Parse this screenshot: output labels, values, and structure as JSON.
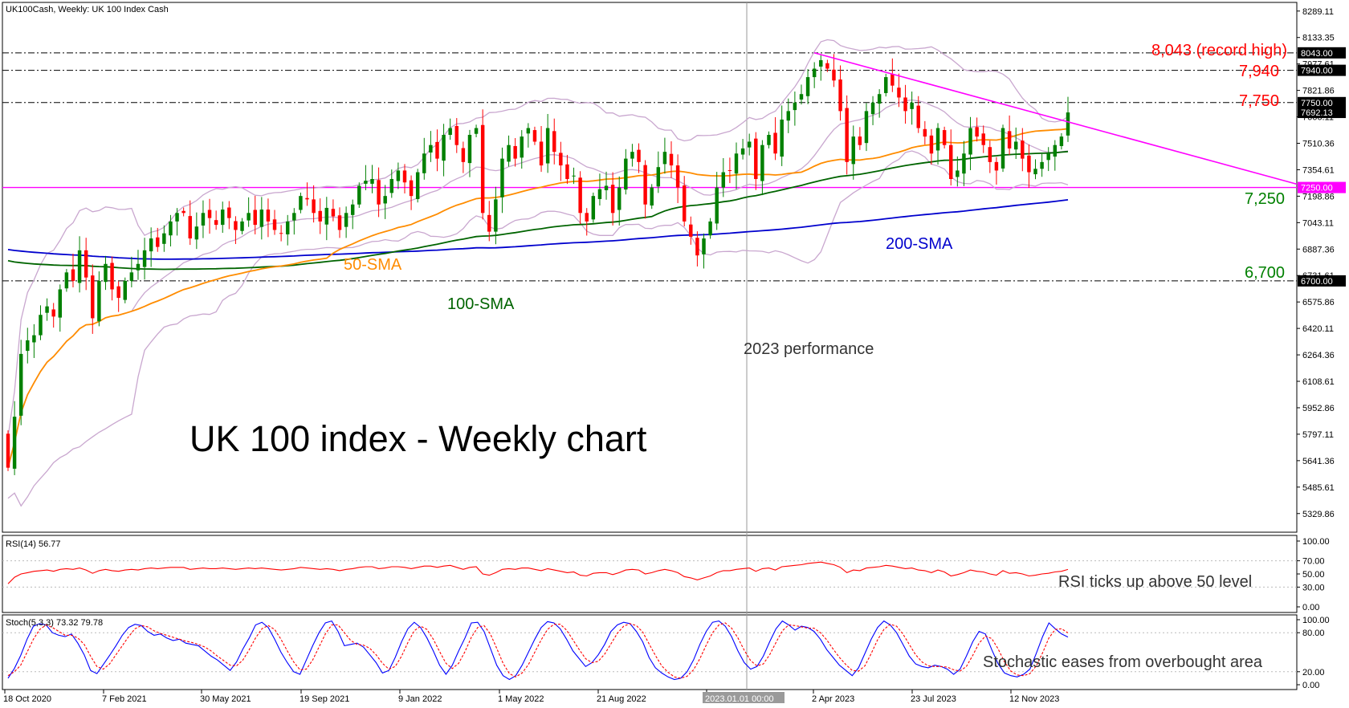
{
  "window": {
    "header": "UK100Cash, Weekly:  UK 100 Index Cash"
  },
  "chart_data": [
    {
      "type": "candlestick",
      "title": "UK 100 index - Weekly chart",
      "price_axis_ticks": [
        "8289.11",
        "8133.35",
        "7977.61",
        "7821.86",
        "7666.11",
        "7510.36",
        "7354.61",
        "7198.86",
        "7043.11",
        "6887.36",
        "6731.61",
        "6575.86",
        "6420.11",
        "6264.36",
        "6108.61",
        "5952.86",
        "5797.11",
        "5641.36",
        "5485.61",
        "5329.86"
      ],
      "ylim": [
        5220,
        8340
      ],
      "time_axis_labels": [
        "18 Oct 2020",
        "7 Feb 2021",
        "30 May 2021",
        "19 Sep 2021",
        "9 Jan 2022",
        "1 May 2022",
        "21 Aug 2022",
        "2023.01.01 00:00",
        "2 Apr 2023",
        "23 Jul 2023",
        "12 Nov 2023"
      ],
      "price_boxes": [
        {
          "label": "8043.00",
          "value": 8043,
          "color": "#000000"
        },
        {
          "label": "7940.00",
          "value": 7940,
          "color": "#000000"
        },
        {
          "label": "7750.00",
          "value": 7750,
          "color": "#000000"
        },
        {
          "label": "7692.13",
          "value": 7692.13,
          "color": "#000000"
        },
        {
          "label": "7250.00",
          "value": 7250,
          "color": "#ff00ff"
        },
        {
          "label": "6700.00",
          "value": 6700,
          "color": "#000000"
        }
      ],
      "levels": [
        {
          "label": "8,043 (record high)",
          "value": 8043,
          "color": "#ff0000",
          "style": "dash-dot"
        },
        {
          "label": "7,940",
          "value": 7940,
          "color": "#ff0000",
          "style": "dash-dot"
        },
        {
          "label": "7,750",
          "value": 7750,
          "color": "#ff0000",
          "style": "dash-dot"
        },
        {
          "label": "7,250",
          "value": 7250,
          "color": "#008000",
          "style": "solid-magenta"
        },
        {
          "label": "6,700",
          "value": 6700,
          "color": "#008000",
          "style": "dash-dot"
        }
      ],
      "annotations": [
        "50-SMA",
        "100-SMA",
        "200-SMA",
        "2023 performance"
      ],
      "colors": {
        "bull": "#008000",
        "bear": "#ff0000",
        "sma50": "#ff8c00",
        "sma100": "#006400",
        "sma200": "#0000cd",
        "bollinger": "#c9a7cf",
        "trendline": "#ff00ff"
      },
      "trendline": {
        "from": [
          0.0,
          8043
        ],
        "to": [
          1.0,
          7270
        ]
      },
      "weeks": 164,
      "close": [
        5600,
        5900,
        6270,
        6350,
        6380,
        6500,
        6550,
        6490,
        6650,
        6750,
        6700,
        6880,
        6720,
        6480,
        6700,
        6800,
        6650,
        6600,
        6700,
        6750,
        6800,
        6880,
        6950,
        6900,
        6980,
        7050,
        7100,
        7100,
        6950,
        7020,
        7100,
        7070,
        7030,
        7120,
        7070,
        7000,
        7050,
        7100,
        7030,
        7120,
        7050,
        7000,
        6980,
        7050,
        7100,
        7200,
        7180,
        7100,
        7050,
        7130,
        7080,
        7000,
        7100,
        7150,
        7260,
        7290,
        7300,
        7150,
        7200,
        7300,
        7350,
        7280,
        7200,
        7340,
        7450,
        7500,
        7420,
        7560,
        7600,
        7500,
        7400,
        7560,
        7600,
        7100,
        6990,
        7180,
        7420,
        7500,
        7420,
        7550,
        7600,
        7520,
        7380,
        7600,
        7460,
        7380,
        7300,
        7320,
        7100,
        7050,
        7200,
        7240,
        7260,
        7100,
        7250,
        7420,
        7460,
        7400,
        7150,
        7250,
        7370,
        7460,
        7380,
        7250,
        7050,
        6960,
        6850,
        6950,
        7050,
        7250,
        7340,
        7350,
        7450,
        7480,
        7520,
        7300,
        7500,
        7560,
        7450,
        7650,
        7700,
        7750,
        7800,
        7900,
        7950,
        8000,
        7950,
        7880,
        7700,
        7400,
        7550,
        7500,
        7700,
        7750,
        7800,
        7900,
        7850,
        7780,
        7700,
        7750,
        7600,
        7550,
        7450,
        7600,
        7500,
        7300,
        7350,
        7450,
        7600,
        7550,
        7500,
        7400,
        7350,
        7600,
        7480,
        7520,
        7420,
        7340,
        7360,
        7400,
        7450,
        7500,
        7550,
        7692
      ]
    },
    {
      "type": "line",
      "title": "RSI(14) 56.77",
      "ylim": [
        0,
        100
      ],
      "y_ticks": [
        "100.00",
        "70.00",
        "50.00",
        "30.00",
        "0.00"
      ],
      "levels": [
        70,
        30
      ],
      "annotation": "RSI ticks up above 50 level",
      "series": [
        {
          "name": "RSI",
          "color": "#ff0000",
          "values": [
            35,
            45,
            50,
            52,
            54,
            55,
            56,
            54,
            57,
            58,
            57,
            59,
            56,
            51,
            55,
            57,
            55,
            54,
            56,
            57,
            56,
            58,
            59,
            58,
            59,
            60,
            60,
            60,
            57,
            58,
            59,
            58,
            58,
            59,
            58,
            57,
            58,
            59,
            58,
            59,
            58,
            57,
            56,
            57,
            58,
            60,
            59,
            58,
            57,
            58,
            57,
            55,
            57,
            58,
            60,
            61,
            61,
            58,
            59,
            61,
            61,
            60,
            58,
            60,
            62,
            62,
            60,
            62,
            63,
            60,
            57,
            60,
            61,
            50,
            48,
            52,
            57,
            58,
            57,
            59,
            59,
            57,
            55,
            58,
            56,
            54,
            52,
            53,
            48,
            47,
            51,
            52,
            52,
            49,
            52,
            56,
            57,
            56,
            50,
            52,
            55,
            57,
            55,
            52,
            46,
            44,
            41,
            44,
            47,
            52,
            55,
            55,
            57,
            58,
            59,
            54,
            58,
            59,
            56,
            61,
            62,
            63,
            64,
            66,
            67,
            68,
            66,
            64,
            60,
            52,
            56,
            55,
            59,
            60,
            61,
            63,
            62,
            60,
            58,
            59,
            56,
            55,
            52,
            56,
            53,
            47,
            49,
            52,
            56,
            54,
            53,
            50,
            48,
            55,
            51,
            52,
            50,
            47,
            48,
            50,
            51,
            53,
            54,
            56.77
          ]
        }
      ]
    },
    {
      "type": "line",
      "title": "Stoch(5,3,3) 73.32 79.78",
      "ylim": [
        0,
        100
      ],
      "y_ticks": [
        "100.00",
        "80.00",
        "20.00",
        "0.00"
      ],
      "levels": [
        80,
        20
      ],
      "annotation": "Stochastic eases from overbought area",
      "series": [
        {
          "name": "%K",
          "color": "#0000ff",
          "values": [
            10,
            25,
            45,
            70,
            90,
            94,
            92,
            80,
            76,
            74,
            78,
            64,
            46,
            22,
            17,
            31,
            45,
            60,
            76,
            88,
            93,
            91,
            82,
            76,
            78,
            72,
            68,
            70,
            64,
            62,
            60,
            52,
            44,
            38,
            30,
            22,
            35,
            55,
            72,
            92,
            96,
            88,
            70,
            50,
            34,
            20,
            16,
            38,
            60,
            80,
            95,
            98,
            82,
            60,
            62,
            64,
            58,
            46,
            34,
            18,
            22,
            42,
            66,
            86,
            96,
            88,
            72,
            52,
            30,
            16,
            30,
            52,
            72,
            95,
            96,
            82,
            56,
            30,
            14,
            8,
            14,
            30,
            50,
            70,
            88,
            97,
            95,
            86,
            70,
            52,
            40,
            28,
            34,
            46,
            62,
            82,
            92,
            96,
            94,
            82,
            66,
            42,
            26,
            18,
            12,
            8,
            10,
            20,
            38,
            62,
            82,
            96,
            98,
            90,
            74,
            52,
            34,
            24,
            28,
            44,
            66,
            86,
            98,
            92,
            84,
            90,
            88,
            82,
            70,
            54,
            42,
            30,
            22,
            14,
            26,
            48,
            70,
            88,
            98,
            92,
            80,
            62,
            44,
            32,
            28,
            26,
            30,
            28,
            24,
            16,
            24,
            44,
            66,
            82,
            78,
            54,
            32,
            18,
            14,
            12,
            16,
            24,
            48,
            74,
            95,
            86,
            78,
            73.32
          ]
        },
        {
          "name": "%D",
          "color": "#ff0000",
          "values": [
            14,
            20,
            30,
            50,
            70,
            85,
            92,
            88,
            82,
            76,
            76,
            72,
            62,
            44,
            28,
            24,
            32,
            46,
            60,
            74,
            86,
            91,
            89,
            83,
            79,
            76,
            73,
            70,
            67,
            65,
            62,
            58,
            52,
            44,
            37,
            30,
            29,
            38,
            54,
            72,
            86,
            91,
            85,
            70,
            52,
            35,
            23,
            24,
            38,
            58,
            78,
            92,
            92,
            80,
            68,
            62,
            61,
            56,
            46,
            33,
            24,
            28,
            44,
            65,
            83,
            90,
            85,
            70,
            51,
            33,
            25,
            33,
            51,
            73,
            88,
            91,
            78,
            56,
            33,
            17,
            12,
            18,
            31,
            50,
            69,
            85,
            93,
            93,
            84,
            69,
            54,
            40,
            34,
            36,
            47,
            63,
            79,
            90,
            94,
            91,
            81,
            63,
            45,
            29,
            19,
            12,
            10,
            13,
            23,
            40,
            61,
            80,
            92,
            95,
            87,
            72,
            53,
            37,
            29,
            32,
            46,
            65,
            83,
            92,
            91,
            89,
            87,
            87,
            80,
            69,
            55,
            42,
            31,
            22,
            21,
            29,
            48,
            69,
            85,
            93,
            90,
            78,
            62,
            46,
            35,
            29,
            28,
            28,
            27,
            23,
            21,
            28,
            45,
            64,
            75,
            71,
            55,
            35,
            21,
            15,
            14,
            17,
            29,
            49,
            72,
            85,
            86,
            79.78
          ]
        }
      ]
    }
  ]
}
